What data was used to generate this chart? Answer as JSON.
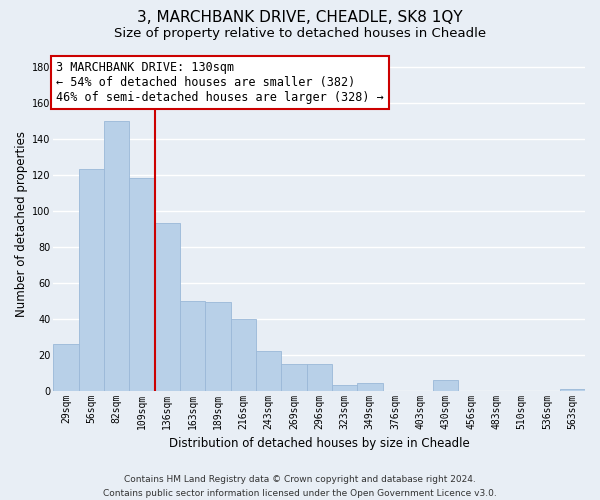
{
  "title": "3, MARCHBANK DRIVE, CHEADLE, SK8 1QY",
  "subtitle": "Size of property relative to detached houses in Cheadle",
  "xlabel": "Distribution of detached houses by size in Cheadle",
  "ylabel": "Number of detached properties",
  "bar_labels": [
    "29sqm",
    "56sqm",
    "82sqm",
    "109sqm",
    "136sqm",
    "163sqm",
    "189sqm",
    "216sqm",
    "243sqm",
    "269sqm",
    "296sqm",
    "323sqm",
    "349sqm",
    "376sqm",
    "403sqm",
    "430sqm",
    "456sqm",
    "483sqm",
    "510sqm",
    "536sqm",
    "563sqm"
  ],
  "bar_values": [
    26,
    123,
    150,
    118,
    93,
    50,
    49,
    40,
    22,
    15,
    15,
    3,
    4,
    0,
    0,
    6,
    0,
    0,
    0,
    0,
    1
  ],
  "bar_color": "#b8d0e8",
  "bar_edge_color": "#9ab8d8",
  "vline_color": "#cc0000",
  "vline_x": 3.5,
  "annotation_text_line1": "3 MARCHBANK DRIVE: 130sqm",
  "annotation_text_line2": "← 54% of detached houses are smaller (382)",
  "annotation_text_line3": "46% of semi-detached houses are larger (328) →",
  "annotation_box_color": "white",
  "annotation_box_edge_color": "#cc0000",
  "ylim": [
    0,
    185
  ],
  "yticks": [
    0,
    20,
    40,
    60,
    80,
    100,
    120,
    140,
    160,
    180
  ],
  "footer_line1": "Contains HM Land Registry data © Crown copyright and database right 2024.",
  "footer_line2": "Contains public sector information licensed under the Open Government Licence v3.0.",
  "background_color": "#e8eef5",
  "grid_color": "white",
  "title_fontsize": 11,
  "subtitle_fontsize": 9.5,
  "axis_label_fontsize": 8.5,
  "tick_fontsize": 7,
  "annotation_fontsize": 8.5,
  "footer_fontsize": 6.5
}
